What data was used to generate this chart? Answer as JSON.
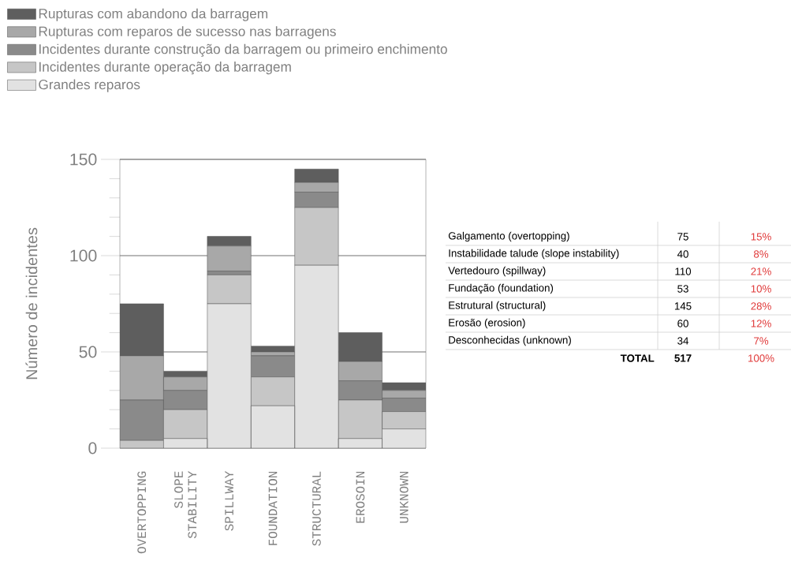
{
  "chart_data": {
    "type": "bar",
    "stacked": true,
    "ylabel": "Número de incidentes",
    "categories": [
      "OVERTOPPING",
      "SLOPE STABILITY",
      "SPILLWAY",
      "FOUNDATION",
      "STRUCTURAL",
      "EROSOIN",
      "UNKNOWN"
    ],
    "series": [
      {
        "name": "Grandes reparos",
        "color": "#e2e2e2",
        "values": [
          0,
          5,
          75,
          22,
          95,
          5,
          10
        ]
      },
      {
        "name": "Incidentes durante operação da barragem",
        "color": "#c6c6c6",
        "values": [
          4,
          15,
          15,
          15,
          30,
          20,
          9
        ]
      },
      {
        "name": "Incidentes durante construção da barragem ou primeiro enchimento",
        "color": "#8a8a8a",
        "values": [
          21,
          10,
          2,
          11,
          8,
          10,
          7
        ]
      },
      {
        "name": "Rupturas com reparos de sucesso nas barragens",
        "color": "#a8a8a8",
        "values": [
          23,
          7,
          13,
          2,
          5,
          10,
          4
        ]
      },
      {
        "name": "Rupturas com abandono da barragem",
        "color": "#5e5e5e",
        "values": [
          27,
          3,
          5,
          3,
          7,
          15,
          4
        ]
      }
    ],
    "ylim": [
      0,
      150
    ],
    "yticks": [
      0,
      50,
      100,
      150
    ],
    "grid": "y",
    "legend": "top left",
    "annotations": [
      "Galgamento (overtopping)",
      "Instabilidade talude (slope instability)",
      "Vertedouro (spillway)",
      "Fundação (foundation)",
      "Estrutural (structural)",
      "Erosão (erosion)",
      "Desconhecidas (unknown)",
      "75",
      "40",
      "110",
      "53",
      "145",
      "60",
      "34",
      "15%",
      "8%",
      "21%",
      "10%",
      "28%",
      "12%",
      "7%",
      "TOTAL",
      "517",
      "100%"
    ]
  }
}
